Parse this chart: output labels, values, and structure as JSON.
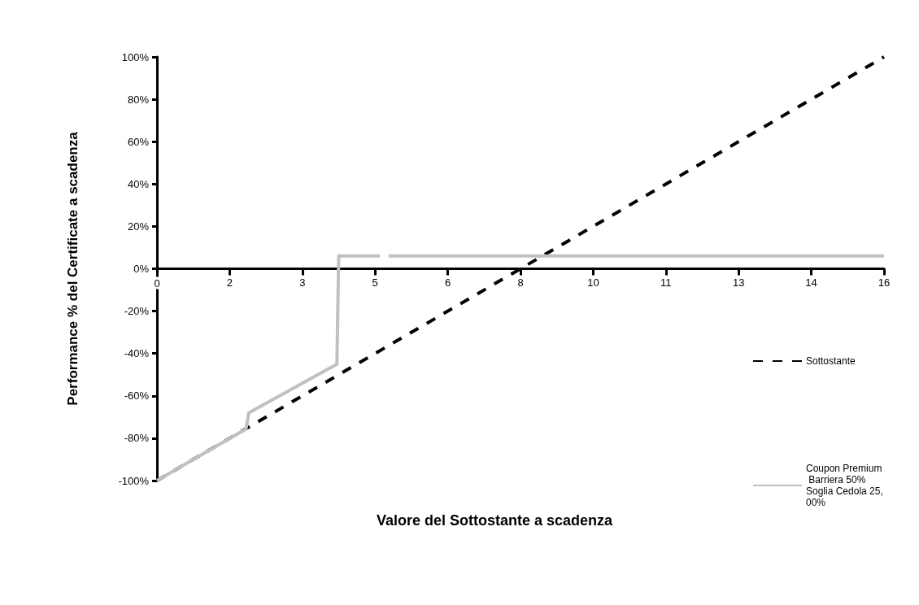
{
  "chart_data": {
    "type": "line",
    "xlabel": "Valore del Sottostante a scadenza",
    "ylabel": "Performance % del Certificate a scadenza",
    "xlim": [
      0,
      16
    ],
    "xticks": [
      0,
      {
        "value": 1.6,
        "label": "2"
      },
      {
        "value": 3.2,
        "label": "3"
      },
      {
        "value": 4.8,
        "label": "5"
      },
      {
        "value": 6.4,
        "label": "6"
      },
      8,
      {
        "value": 9.6,
        "label": "10"
      },
      {
        "value": 11.2,
        "label": "11"
      },
      {
        "value": 12.8,
        "label": "13"
      },
      {
        "value": 14.4,
        "label": "14"
      },
      16
    ],
    "ylim": [
      -100,
      100
    ],
    "yticks": [
      {
        "value": -100,
        "label": "-100%"
      },
      {
        "value": -80,
        "label": "-80%"
      },
      {
        "value": -60,
        "label": "-60%"
      },
      {
        "value": -40,
        "label": "-40%"
      },
      {
        "value": -20,
        "label": "-20%"
      },
      {
        "value": 0,
        "label": "0%"
      },
      {
        "value": 20,
        "label": "20%"
      },
      {
        "value": 40,
        "label": "40%"
      },
      {
        "value": 60,
        "label": "60%"
      },
      {
        "value": 80,
        "label": "80%"
      },
      {
        "value": 100,
        "label": "100%"
      }
    ],
    "grid": false,
    "legend": "right",
    "marker": "none",
    "series": [
      {
        "name": "Sottostante",
        "color": "#000000",
        "line_style": "dashed",
        "x": [
          0,
          16
        ],
        "values": [
          -100,
          100
        ]
      },
      {
        "name": "Coupon Premium Barriera 50% Soglia Cedola 25,00%",
        "color": "#c0c0c0",
        "line_style": "solid",
        "x": [
          0,
          1.96,
          2.02,
          3.96,
          4.0,
          4.9,
          5.0,
          5.1,
          16
        ],
        "values": [
          -100,
          -75.6,
          -68,
          -45,
          6,
          6,
          null,
          6,
          6
        ]
      }
    ]
  }
}
